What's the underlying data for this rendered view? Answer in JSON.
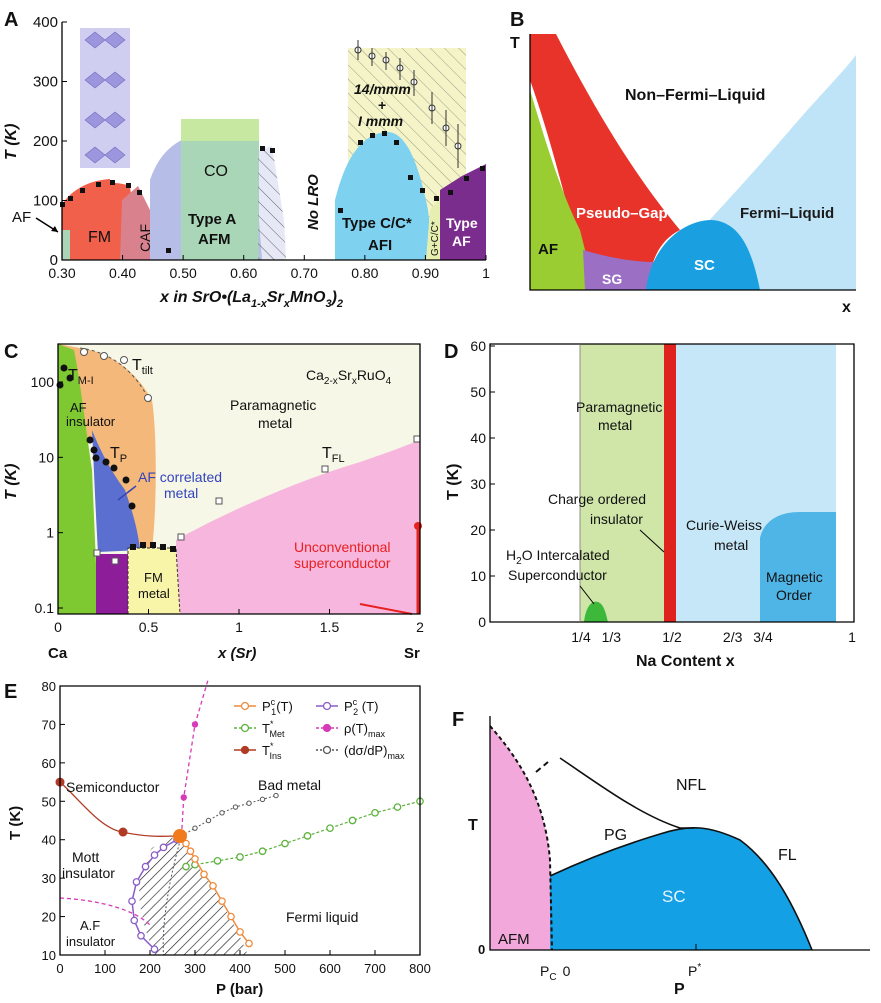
{
  "panels": {
    "A": {
      "letter": "A",
      "ylabel": "T (K)",
      "xlabel_parts": [
        "x in SrO•(La",
        "1-x",
        "Sr",
        "x",
        "MnO",
        "3",
        ")",
        "2"
      ],
      "yticks": [
        "0",
        "100",
        "200",
        "300",
        "400"
      ],
      "xticks": [
        "0.30",
        "0.40",
        "0.50",
        "0.60",
        "0.70",
        "0.80",
        "0.90",
        "1"
      ],
      "regions": {
        "FM": "FM",
        "CAF": "CAF",
        "CO": "CO",
        "TypeA1": "Type A",
        "TypeA2": "AFM",
        "NoLRO": "No LRO",
        "T14": "14/mmm",
        "Tplus": "+",
        "Immm": "I mmm",
        "TypeC1": "Type C/C*",
        "TypeC2": "AFI",
        "GC": "G+C/C*",
        "TypeAF1": "Type",
        "TypeAF2": "AF",
        "AFarrow": "AF"
      },
      "colors": {
        "FM": "#f0604a",
        "CAF": "#d9828e",
        "CO": "#b6bde6",
        "coTop": "#c7e8a0",
        "TypeA": "#a9d6b6",
        "TypeC": "#7fd1f0",
        "yellow": "#f4f4c8",
        "purple": "#7b2d8e"
      }
    },
    "B": {
      "letter": "B",
      "ylabel": "T",
      "xlabel": "x",
      "regions": {
        "NFL": "Non–Fermi–Liquid",
        "PG": "Pseudo–Gap",
        "FL": "Fermi–Liquid",
        "AF": "AF",
        "SG": "SG",
        "SC": "SC"
      },
      "colors": {
        "red": "#e8332a",
        "green": "#9acd32",
        "purple": "#9a6fc4",
        "blue": "#1aa0e0",
        "lightblue": "#bfe4f7"
      }
    },
    "C": {
      "letter": "C",
      "ylabel": "T (K)",
      "xlabel": "x (Sr)",
      "title_parts": [
        "Ca",
        "2-x",
        "Sr",
        "x",
        "RuO",
        "4"
      ],
      "yticks": [
        "0.1",
        "1",
        "10",
        "100"
      ],
      "xticks": [
        "0",
        "0.5",
        "1",
        "1.5",
        "2"
      ],
      "end_labels": [
        "Ca",
        "Sr"
      ],
      "labels": {
        "TMI_main": "T",
        "TMI_sub": "M-I",
        "Ttilt_main": "T",
        "Ttilt_sub": "tilt",
        "TP_main": "T",
        "TP_sub": "P",
        "TFL_main": "T",
        "TFL_sub": "FL",
        "AF1": "AF",
        "AF2": "insulator",
        "AFc1": "AF correlated",
        "AFc2": "metal",
        "PM1": "Paramagnetic",
        "PM2": "metal",
        "FM1": "FM",
        "FM2": "metal",
        "US1": "Unconventional",
        "US2": "superconductor"
      },
      "colors": {
        "green": "#7ec832",
        "orange": "#f4b87a",
        "blue": "#5a6fcf",
        "purple": "#8e1d9a",
        "pink": "#f7b6dd",
        "cream": "#f7f7e8",
        "yellow": "#f8f4a8",
        "red": "#e82020"
      }
    },
    "D": {
      "letter": "D",
      "ylabel": "T (K)",
      "xlabel": "Na Content x",
      "yticks": [
        "0",
        "10",
        "20",
        "30",
        "40",
        "50",
        "60"
      ],
      "xticks": [
        "1/4",
        "1/3",
        "1/2",
        "2/3",
        "3/4",
        "1"
      ],
      "labels": {
        "PM1": "Paramagnetic",
        "PM2": "metal",
        "CO1": "Charge ordered",
        "CO2": "insulator",
        "CW1": "Curie-Weiss",
        "CW2": "metal",
        "H2O1a": "H",
        "H2O1b": "2",
        "H2O1c": "O Intercalated",
        "H2O2": "Superconductor",
        "MO1": "Magnetic",
        "MO2": "Order"
      },
      "colors": {
        "green": "#cfe6a8",
        "red": "#e0221e",
        "lightblue": "#c6e7f7",
        "blue": "#4fb4e6",
        "sc": "#3db83a"
      }
    },
    "E": {
      "letter": "E",
      "ylabel": "T (K)",
      "xlabel": "P (bar)",
      "yticks": [
        "10",
        "20",
        "30",
        "40",
        "50",
        "60",
        "70",
        "80"
      ],
      "xticks": [
        "0",
        "100",
        "200",
        "300",
        "400",
        "500",
        "600",
        "700",
        "800"
      ],
      "legend": [
        "Pᶜ₁(T)",
        "T*Met",
        "T*Ins",
        "Pᶜ₂ (T)",
        "ρ(T)max",
        "(dσ/dP)max"
      ],
      "legend_parts": [
        {
          "a": "P",
          "sup": "c",
          "sub": "1",
          "b": "(T)"
        },
        {
          "a": "T",
          "sup": "*",
          "sub": "Met",
          "b": ""
        },
        {
          "a": "T",
          "sup": "*",
          "sub": "Ins",
          "b": ""
        },
        {
          "a": "P",
          "sup": "c",
          "sub": "2",
          "b": " (T)"
        },
        {
          "a": "ρ(T)",
          "sup": "",
          "sub": "max",
          "b": ""
        },
        {
          "a": "(dσ/dP)",
          "sup": "",
          "sub": "max",
          "b": ""
        }
      ],
      "labels": {
        "semi": "Semiconductor",
        "bad": "Bad metal",
        "mott1": "Mott",
        "mott2": "insulator",
        "af1": "A.F",
        "af2": "insulator",
        "fermi": "Fermi liquid"
      },
      "colors": {
        "orange": "#f08a3c",
        "green": "#5cb33c",
        "brown": "#b03a24",
        "violet": "#8a5cc8",
        "magenta": "#d63bb8",
        "gray": "#555555"
      }
    },
    "F": {
      "letter": "F",
      "ylabel": "T",
      "xlabel": "P",
      "xticks_main": [
        "P",
        "C",
        "0",
        "P",
        "*"
      ],
      "zero": "0",
      "regions": {
        "NFL": "NFL",
        "PG": "PG",
        "FL": "FL",
        "SC": "SC",
        "AFM": "AFM"
      },
      "colors": {
        "pink": "#f3a8dc",
        "blue": "#14a0e4"
      }
    }
  }
}
